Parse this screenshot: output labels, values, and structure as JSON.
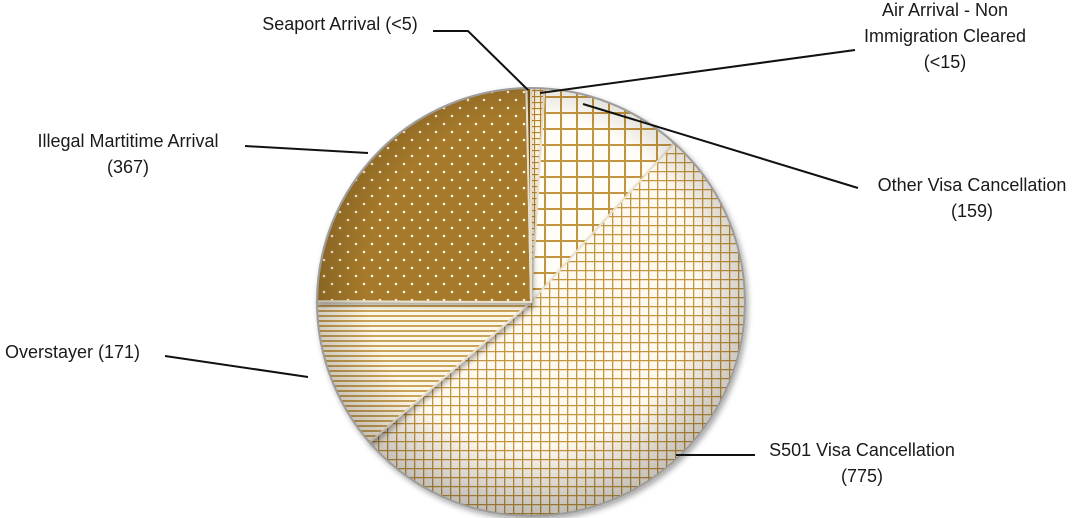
{
  "chart_data": {
    "type": "pie",
    "title": "",
    "slices": [
      {
        "name": "Air Arrival - Non Immigration Cleared",
        "value": 15,
        "display": "(<15)",
        "label_lines": [
          "Air Arrival - Non",
          "Immigration Cleared",
          "(<15)"
        ],
        "pattern": "cross-small",
        "color": "#c39540"
      },
      {
        "name": "Other Visa Cancellation",
        "value": 159,
        "display": "(159)",
        "label_lines": [
          "Other Visa Cancellation",
          "(159)"
        ],
        "pattern": "grid-large",
        "color": "#c39540"
      },
      {
        "name": "S501 Visa Cancellation",
        "value": 775,
        "display": "(775)",
        "label_lines": [
          "S501 Visa Cancellation",
          "(775)"
        ],
        "pattern": "grid-small",
        "color": "#c39540"
      },
      {
        "name": "Overstayer",
        "value": 171,
        "display": "(171)",
        "label_lines": [
          "Overstayer (171)"
        ],
        "pattern": "horizontal-lines",
        "color": "#c39540"
      },
      {
        "name": "Illegal Martitime Arrival",
        "value": 367,
        "display": "(367)",
        "label_lines": [
          "Illegal Martitime Arrival",
          "(367)"
        ],
        "pattern": "dots-dark",
        "color": "#a67a2c"
      },
      {
        "name": "Seaport Arrival",
        "value": 5,
        "display": "(<5)",
        "label_lines": [
          "Seaport Arrival (<5)"
        ],
        "pattern": "solid-dark",
        "color": "#7a5516"
      }
    ],
    "start_angle": "12 o'clock",
    "direction": "clockwise",
    "legend": "none",
    "labels": "outside with leader lines"
  }
}
